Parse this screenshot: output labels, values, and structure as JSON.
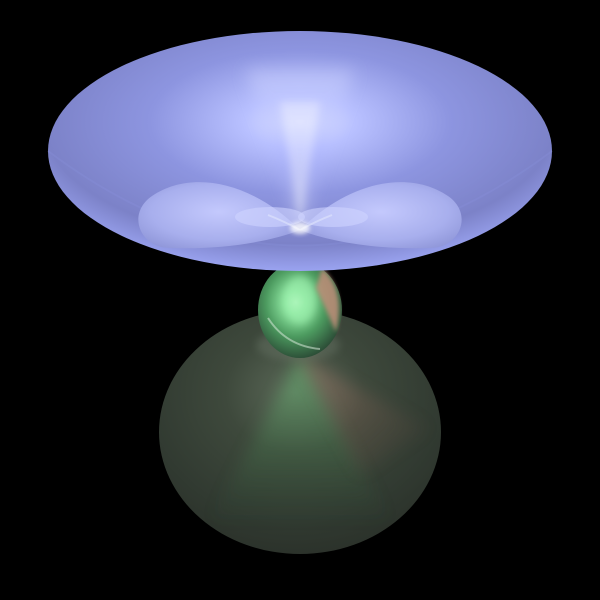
{
  "scene": {
    "description_label": "",
    "colors": {
      "background": "#000000",
      "upper_lobe": "#8f97e6",
      "upper_lobe_edge": "#6f74b6",
      "upper_lobe_highlight": "#dde2ff",
      "inner_lobes": "#aeb5f1",
      "waist": "#5bb06f",
      "waist_highlight": "#9cf0ad",
      "waist_rim": "#b98972",
      "lower_lobe": "#3e483d",
      "lower_lobe_green": "#3d8f4c",
      "lower_lobe_red": "#8f5f54"
    }
  }
}
